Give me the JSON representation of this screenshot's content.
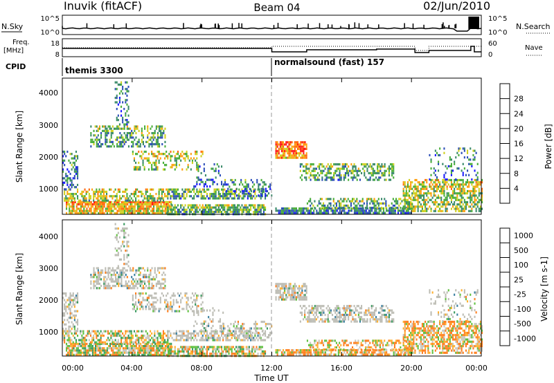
{
  "header": {
    "station": "Inuvik (fitACF)",
    "beam": "Beam 04",
    "date": "02/Jun/2010"
  },
  "top_panels": {
    "nsky_label": "N.Sky",
    "nsky_ticks": [
      "10^5",
      "10^0"
    ],
    "nsearch_label": "N.Search",
    "nsearch_ticks": [
      "10^5",
      "10^0"
    ],
    "freq_label": "Freq.",
    "freq_unit": "[MHz]",
    "freq_ticks": [
      "18",
      "8"
    ],
    "nave_label": "Nave",
    "nave_ticks": [
      "60",
      "0"
    ],
    "cpid_label": "CPID",
    "cpid_segments": [
      {
        "label": "themis 3300",
        "start_hour": 0,
        "end_hour": 12
      },
      {
        "label": "normalsound (fast) 157",
        "start_hour": 12,
        "end_hour": 24
      }
    ]
  },
  "power_panel": {
    "ylabel": "Slant Range [km]",
    "yticks": [
      "4000",
      "3000",
      "2000",
      "1000"
    ],
    "colorbar_label": "Power [dB]",
    "colorbar_ticks": [
      "28",
      "24",
      "20",
      "16",
      "12",
      "8",
      "4"
    ],
    "colors": [
      "#1a1aff",
      "#2d4fb8",
      "#3a8a6a",
      "#4aae3a",
      "#cfd020",
      "#ff9f10",
      "#ff6a10",
      "#ff1a1a"
    ]
  },
  "velocity_panel": {
    "ylabel": "Slant Range [km]",
    "yticks": [
      "4000",
      "3000",
      "2000",
      "1000"
    ],
    "colorbar_label": "Velocity [m s-1]",
    "colorbar_ticks": [
      "1000",
      "500",
      "100",
      "25",
      "-25",
      "-100",
      "-500",
      "-1000"
    ],
    "colors": [
      "#2040d0",
      "#3a7fa0",
      "#3a9a60",
      "#60c040",
      "#c8c8c0",
      "#ffb030",
      "#ff8020",
      "#ff3010"
    ],
    "ground_scatter_color": "#bdbdb5"
  },
  "x_axis": {
    "ticks": [
      "00:00",
      "04:00",
      "08:00",
      "12:00",
      "16:00",
      "20:00",
      "00:00"
    ],
    "label": "Time UT"
  },
  "chart_data": [
    {
      "type": "heatmap",
      "title": "Power",
      "xlabel": "Time UT",
      "ylabel": "Slant Range [km]",
      "x_range_hours": [
        0,
        24
      ],
      "ylim": [
        180,
        4500
      ],
      "zlabel": "Power [dB]",
      "zlim": [
        0,
        30
      ],
      "echo_bands": [
        {
          "x_hours": [
            0,
            6
          ],
          "range_km": [
            200,
            900
          ],
          "power_db": 22
        },
        {
          "x_hours": [
            6,
            11
          ],
          "range_km": [
            200,
            600
          ],
          "power_db": 14
        },
        {
          "x_hours": [
            12.2,
            18
          ],
          "range_km": [
            200,
            500
          ],
          "power_db": 10
        },
        {
          "x_hours": [
            12.3,
            14
          ],
          "range_km": [
            2200,
            2400
          ],
          "power_db": 20
        },
        {
          "x_hours": [
            14,
            20
          ],
          "range_km": [
            1300,
            1700
          ],
          "power_db": 12
        },
        {
          "x_hours": [
            20,
            24
          ],
          "range_km": [
            300,
            1200
          ],
          "power_db": 16
        }
      ]
    },
    {
      "type": "heatmap",
      "title": "Velocity",
      "xlabel": "Time UT",
      "ylabel": "Slant Range [km]",
      "x_range_hours": [
        0,
        24
      ],
      "ylim": [
        180,
        4500
      ],
      "zlabel": "Velocity [m s-1]",
      "zlim": [
        -1000,
        1000
      ]
    },
    {
      "type": "line",
      "title": "Freq. [MHz]",
      "x_hours": [
        0,
        12,
        12.01,
        24
      ],
      "y": [
        13,
        13,
        12.5,
        12.5
      ],
      "ylim": [
        8,
        18
      ]
    }
  ]
}
